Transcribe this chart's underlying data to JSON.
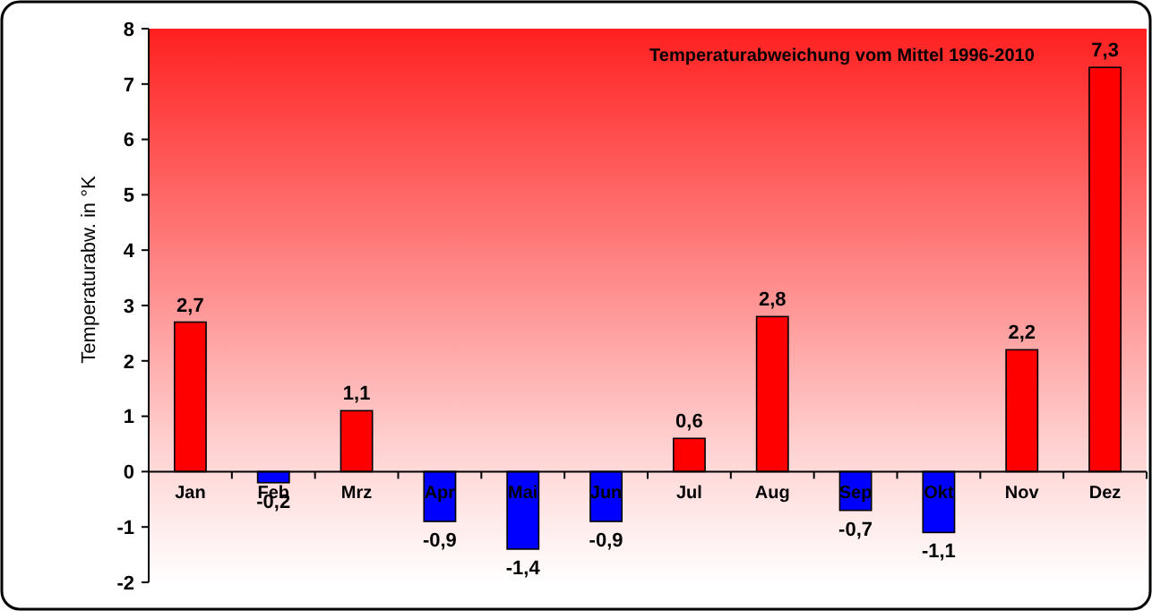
{
  "chart_data": {
    "type": "bar",
    "title": "Temperaturabweichung vom Mittel 1996-2010",
    "ylabel": "Temperaturabw. in °K",
    "categories": [
      "Jan",
      "Feb",
      "Mrz",
      "Apr",
      "Mai",
      "Jun",
      "Jul",
      "Aug",
      "Sep",
      "Okt",
      "Nov",
      "Dez"
    ],
    "values": [
      2.7,
      -0.2,
      1.1,
      -0.9,
      -1.4,
      -0.9,
      0.6,
      2.8,
      -0.7,
      -1.1,
      2.2,
      7.3
    ],
    "colors": [
      "#ff0000",
      "#0000ff",
      "#ff0000",
      "#0000ff",
      "#0000ff",
      "#0000ff",
      "#ff0000",
      "#ff0000",
      "#0000ff",
      "#0000ff",
      "#ff0000",
      "#ff0000"
    ],
    "value_labels": [
      "2,7",
      "-0,2",
      "1,1",
      "-0,9",
      "-1,4",
      "-0,9",
      "0,6",
      "2,8",
      "-0,7",
      "-1,1",
      "2,2",
      "7,3"
    ],
    "ylim": [
      -2,
      8
    ],
    "yticks": [
      -2,
      -1,
      0,
      1,
      2,
      3,
      4,
      5,
      6,
      7,
      8
    ],
    "grid": false
  }
}
